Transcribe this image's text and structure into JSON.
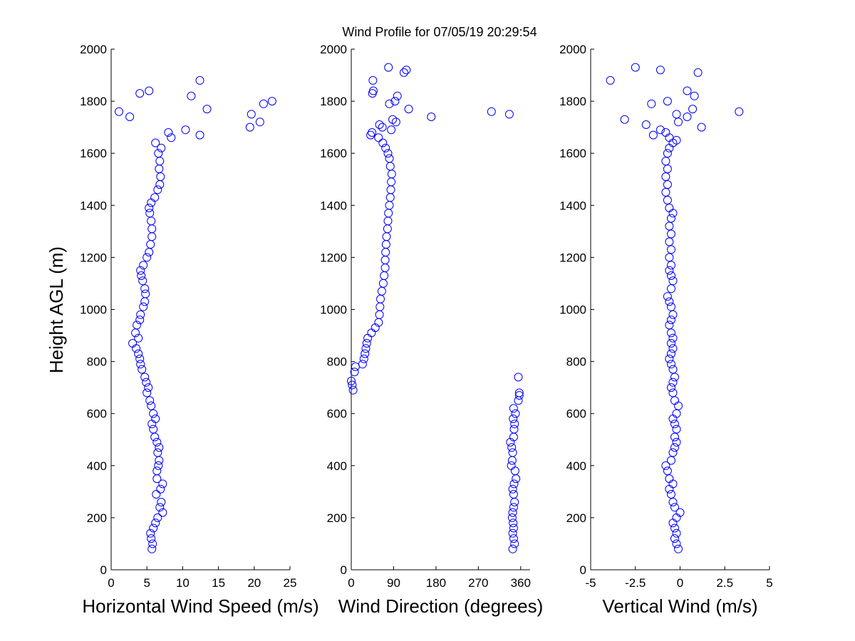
{
  "chart_data": {
    "title": "Wind Profile for  07/05/19 20:29:54",
    "type": "scatter",
    "marker": "open-circle",
    "marker_color": "#0000ff",
    "ylabel": "Height AGL (m)",
    "ylim": [
      0,
      2000
    ],
    "yticks": [
      0,
      200,
      400,
      600,
      800,
      1000,
      1200,
      1400,
      1600,
      1800,
      2000
    ],
    "panels": [
      {
        "name": "horizontal-wind-speed",
        "xlabel": "Horizontal Wind Speed (m/s)",
        "xlim": [
          0,
          25
        ],
        "xticks": [
          0,
          5,
          10,
          15,
          20,
          25
        ],
        "xticklabels": [
          "0",
          "5",
          "10",
          "15",
          "20",
          "25"
        ],
        "points": [
          [
            5.7,
            80
          ],
          [
            5.8,
            100
          ],
          [
            5.6,
            120
          ],
          [
            5.5,
            140
          ],
          [
            5.9,
            160
          ],
          [
            6.2,
            180
          ],
          [
            6.5,
            200
          ],
          [
            7.2,
            220
          ],
          [
            6.8,
            240
          ],
          [
            7.0,
            260
          ],
          [
            6.3,
            290
          ],
          [
            6.9,
            310
          ],
          [
            7.2,
            330
          ],
          [
            6.4,
            350
          ],
          [
            6.4,
            380
          ],
          [
            6.6,
            400
          ],
          [
            6.7,
            420
          ],
          [
            6.5,
            450
          ],
          [
            6.7,
            470
          ],
          [
            6.4,
            490
          ],
          [
            6.1,
            510
          ],
          [
            5.9,
            540
          ],
          [
            5.7,
            560
          ],
          [
            6.2,
            580
          ],
          [
            5.9,
            600
          ],
          [
            5.6,
            630
          ],
          [
            5.4,
            650
          ],
          [
            5.0,
            680
          ],
          [
            5.2,
            700
          ],
          [
            4.9,
            720
          ],
          [
            4.7,
            740
          ],
          [
            4.3,
            770
          ],
          [
            4.1,
            790
          ],
          [
            4.0,
            810
          ],
          [
            3.8,
            830
          ],
          [
            3.5,
            850
          ],
          [
            3.0,
            870
          ],
          [
            3.8,
            890
          ],
          [
            3.4,
            910
          ],
          [
            3.6,
            940
          ],
          [
            4.0,
            960
          ],
          [
            4.1,
            980
          ],
          [
            4.5,
            1010
          ],
          [
            4.7,
            1030
          ],
          [
            4.8,
            1060
          ],
          [
            4.7,
            1080
          ],
          [
            4.4,
            1110
          ],
          [
            4.2,
            1130
          ],
          [
            4.1,
            1150
          ],
          [
            4.5,
            1170
          ],
          [
            5.0,
            1200
          ],
          [
            5.3,
            1220
          ],
          [
            5.5,
            1250
          ],
          [
            5.7,
            1280
          ],
          [
            5.7,
            1310
          ],
          [
            5.6,
            1340
          ],
          [
            5.4,
            1370
          ],
          [
            5.3,
            1390
          ],
          [
            5.6,
            1410
          ],
          [
            6.1,
            1430
          ],
          [
            6.5,
            1460
          ],
          [
            6.8,
            1480
          ],
          [
            6.9,
            1510
          ],
          [
            6.7,
            1540
          ],
          [
            6.8,
            1570
          ],
          [
            6.6,
            1600
          ],
          [
            7.0,
            1620
          ],
          [
            6.2,
            1640
          ],
          [
            8.4,
            1660
          ],
          [
            8.0,
            1680
          ],
          [
            10.4,
            1690
          ],
          [
            12.4,
            1670
          ],
          [
            19.4,
            1700
          ],
          [
            20.8,
            1720
          ],
          [
            2.6,
            1740
          ],
          [
            1.1,
            1760
          ],
          [
            19.6,
            1750
          ],
          [
            13.4,
            1770
          ],
          [
            21.3,
            1790
          ],
          [
            22.5,
            1800
          ],
          [
            11.2,
            1820
          ],
          [
            4.0,
            1830
          ],
          [
            5.3,
            1840
          ],
          [
            12.4,
            1880
          ]
        ]
      },
      {
        "name": "wind-direction",
        "xlabel": "Wind Direction (degrees)",
        "xlim": [
          0,
          380
        ],
        "xticks": [
          0,
          90,
          180,
          270,
          360
        ],
        "xticklabels": [
          "0",
          "90",
          "180",
          "270",
          "360"
        ],
        "points": [
          [
            343,
            80
          ],
          [
            347,
            100
          ],
          [
            345,
            120
          ],
          [
            343,
            140
          ],
          [
            345,
            160
          ],
          [
            344,
            180
          ],
          [
            342,
            200
          ],
          [
            343,
            220
          ],
          [
            345,
            240
          ],
          [
            347,
            260
          ],
          [
            345,
            290
          ],
          [
            343,
            310
          ],
          [
            346,
            330
          ],
          [
            350,
            350
          ],
          [
            348,
            380
          ],
          [
            340,
            400
          ],
          [
            342,
            420
          ],
          [
            343,
            450
          ],
          [
            341,
            470
          ],
          [
            338,
            490
          ],
          [
            345,
            510
          ],
          [
            346,
            540
          ],
          [
            347,
            560
          ],
          [
            344,
            580
          ],
          [
            349,
            600
          ],
          [
            345,
            620
          ],
          [
            355,
            650
          ],
          [
            357,
            670
          ],
          [
            357,
            680
          ],
          [
            355,
            740
          ],
          [
            4,
            690
          ],
          [
            2,
            710
          ],
          [
            0,
            725
          ],
          [
            7,
            760
          ],
          [
            9,
            780
          ],
          [
            24,
            790
          ],
          [
            27,
            810
          ],
          [
            29,
            830
          ],
          [
            31,
            850
          ],
          [
            33,
            870
          ],
          [
            35,
            890
          ],
          [
            43,
            910
          ],
          [
            51,
            930
          ],
          [
            58,
            950
          ],
          [
            60,
            980
          ],
          [
            61,
            1010
          ],
          [
            62,
            1040
          ],
          [
            65,
            1070
          ],
          [
            68,
            1100
          ],
          [
            70,
            1130
          ],
          [
            72,
            1160
          ],
          [
            72,
            1190
          ],
          [
            73,
            1220
          ],
          [
            74,
            1250
          ],
          [
            75,
            1280
          ],
          [
            77,
            1310
          ],
          [
            78,
            1340
          ],
          [
            79,
            1370
          ],
          [
            81,
            1400
          ],
          [
            83,
            1430
          ],
          [
            84,
            1460
          ],
          [
            85,
            1490
          ],
          [
            86,
            1520
          ],
          [
            83,
            1550
          ],
          [
            81,
            1580
          ],
          [
            78,
            1600
          ],
          [
            73,
            1620
          ],
          [
            67,
            1640
          ],
          [
            58,
            1660
          ],
          [
            41,
            1670
          ],
          [
            44,
            1680
          ],
          [
            66,
            1700
          ],
          [
            85,
            1690
          ],
          [
            60,
            1710
          ],
          [
            95,
            1720
          ],
          [
            88,
            1730
          ],
          [
            170,
            1740
          ],
          [
            298,
            1760
          ],
          [
            336,
            1750
          ],
          [
            122,
            1770
          ],
          [
            81,
            1790
          ],
          [
            93,
            1800
          ],
          [
            98,
            1820
          ],
          [
            45,
            1830
          ],
          [
            47,
            1840
          ],
          [
            46,
            1880
          ],
          [
            112,
            1910
          ],
          [
            117,
            1920
          ],
          [
            79,
            1930
          ]
        ]
      },
      {
        "name": "vertical-wind",
        "xlabel": "Vertical Wind (m/s)",
        "xlim": [
          -5,
          5
        ],
        "xticks": [
          -5,
          -2.5,
          0,
          2.5,
          5
        ],
        "xticklabels": [
          "-5",
          "-2.5",
          "0",
          "2.5",
          "5"
        ],
        "points": [
          [
            -0.1,
            80
          ],
          [
            -0.2,
            100
          ],
          [
            -0.3,
            120
          ],
          [
            -0.2,
            140
          ],
          [
            -0.3,
            160
          ],
          [
            -0.4,
            180
          ],
          [
            -0.2,
            200
          ],
          [
            0.0,
            220
          ],
          [
            -0.3,
            240
          ],
          [
            -0.4,
            260
          ],
          [
            -0.5,
            290
          ],
          [
            -0.6,
            310
          ],
          [
            -0.4,
            330
          ],
          [
            -0.6,
            350
          ],
          [
            -0.7,
            380
          ],
          [
            -0.8,
            400
          ],
          [
            -0.5,
            420
          ],
          [
            -0.4,
            450
          ],
          [
            -0.3,
            470
          ],
          [
            -0.2,
            490
          ],
          [
            -0.3,
            510
          ],
          [
            -0.2,
            540
          ],
          [
            -0.3,
            560
          ],
          [
            -0.4,
            580
          ],
          [
            -0.2,
            600
          ],
          [
            -0.1,
            630
          ],
          [
            -0.3,
            650
          ],
          [
            -0.4,
            680
          ],
          [
            -0.5,
            700
          ],
          [
            -0.4,
            720
          ],
          [
            -0.3,
            740
          ],
          [
            -0.4,
            770
          ],
          [
            -0.5,
            790
          ],
          [
            -0.6,
            810
          ],
          [
            -0.5,
            830
          ],
          [
            -0.4,
            850
          ],
          [
            -0.5,
            870
          ],
          [
            -0.4,
            890
          ],
          [
            -0.5,
            910
          ],
          [
            -0.6,
            940
          ],
          [
            -0.5,
            960
          ],
          [
            -0.4,
            980
          ],
          [
            -0.5,
            1010
          ],
          [
            -0.6,
            1030
          ],
          [
            -0.7,
            1050
          ],
          [
            -0.5,
            1080
          ],
          [
            -0.4,
            1110
          ],
          [
            -0.5,
            1130
          ],
          [
            -0.6,
            1150
          ],
          [
            -0.5,
            1170
          ],
          [
            -0.6,
            1200
          ],
          [
            -0.5,
            1230
          ],
          [
            -0.6,
            1260
          ],
          [
            -0.5,
            1290
          ],
          [
            -0.6,
            1320
          ],
          [
            -0.5,
            1350
          ],
          [
            -0.4,
            1370
          ],
          [
            -0.6,
            1390
          ],
          [
            -0.7,
            1420
          ],
          [
            -0.8,
            1450
          ],
          [
            -0.7,
            1480
          ],
          [
            -0.8,
            1510
          ],
          [
            -0.7,
            1540
          ],
          [
            -0.8,
            1570
          ],
          [
            -0.7,
            1600
          ],
          [
            -0.6,
            1620
          ],
          [
            -0.4,
            1640
          ],
          [
            -0.2,
            1650
          ],
          [
            -1.5,
            1670
          ],
          [
            -1.1,
            1690
          ],
          [
            -0.8,
            1680
          ],
          [
            -0.6,
            1660
          ],
          [
            -1.9,
            1710
          ],
          [
            -0.1,
            1720
          ],
          [
            1.2,
            1700
          ],
          [
            -3.1,
            1730
          ],
          [
            -0.2,
            1750
          ],
          [
            0.4,
            1740
          ],
          [
            3.3,
            1760
          ],
          [
            0.7,
            1770
          ],
          [
            -1.6,
            1790
          ],
          [
            -0.7,
            1800
          ],
          [
            0.8,
            1820
          ],
          [
            0.4,
            1840
          ],
          [
            -3.9,
            1880
          ],
          [
            1.0,
            1910
          ],
          [
            -1.1,
            1920
          ],
          [
            -2.5,
            1930
          ]
        ]
      }
    ]
  }
}
